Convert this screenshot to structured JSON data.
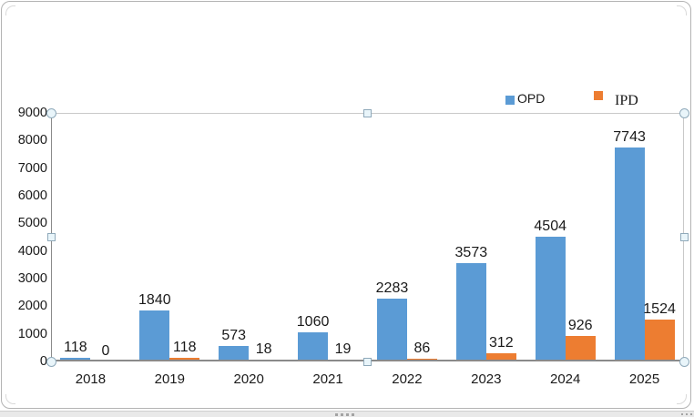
{
  "chart_data": {
    "type": "bar",
    "title": "",
    "xlabel": "",
    "ylabel": "",
    "categories": [
      "2018",
      "2019",
      "2020",
      "2021",
      "2022",
      "2023",
      "2024",
      "2025"
    ],
    "series": [
      {
        "name": "OPD",
        "color": "#5b9bd5",
        "values": [
          118,
          1840,
          573,
          1060,
          2283,
          3573,
          4504,
          7743
        ]
      },
      {
        "name": "IPD",
        "color": "#ed7d31",
        "values": [
          0,
          118,
          18,
          19,
          86,
          312,
          926,
          1524
        ]
      }
    ],
    "ylim": [
      0,
      9000
    ],
    "ytick_labels": [
      "0",
      "1000",
      "2000",
      "3000",
      "4000",
      "5000",
      "6000",
      "7000",
      "8000",
      "9000"
    ],
    "grid": false,
    "data_labels": true,
    "legend_position": "top-right"
  },
  "legend": {
    "opd_label": "OPD",
    "ipd_label": "IPD"
  },
  "selection": {
    "state": "plot-area-selected"
  }
}
